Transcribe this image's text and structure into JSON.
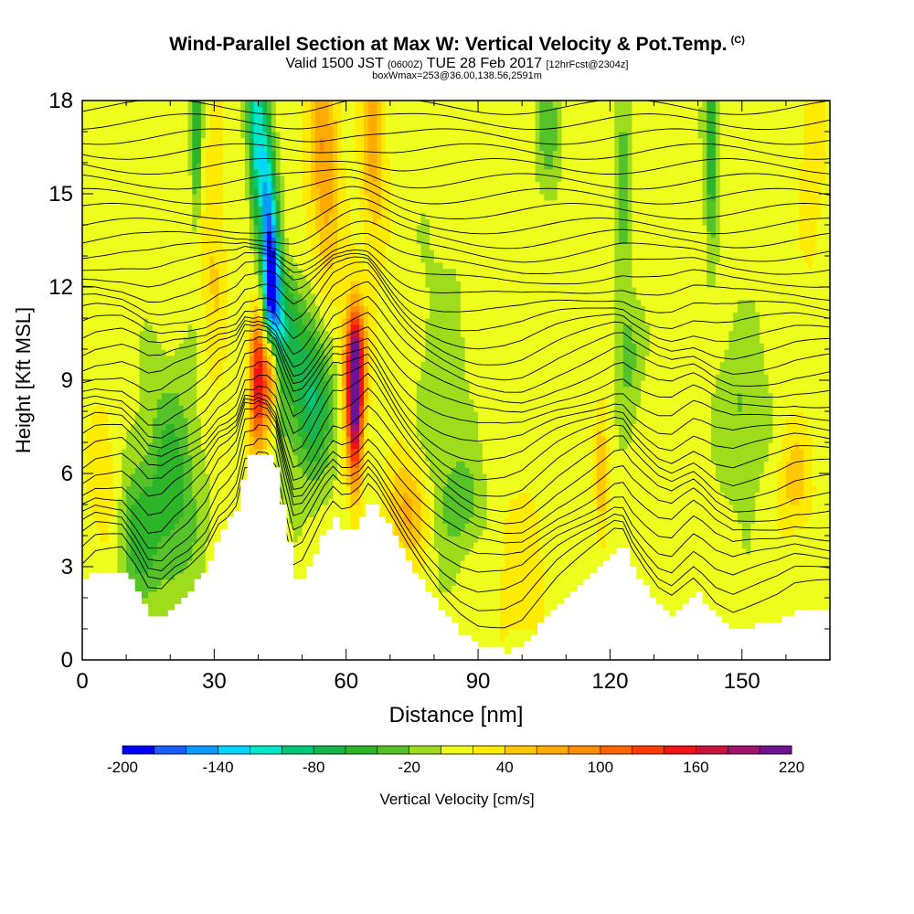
{
  "title": {
    "main": "Wind-Parallel Section at Max W: Vertical Velocity & Pot.Temp.",
    "copyright": "(C)",
    "valid_prefix": "Valid 1500 JST",
    "valid_utc": "(0600Z)",
    "valid_date": "TUE 28 Feb 2017",
    "forecast": "[12hrFcst@2304z]",
    "box": "boxWmax=253@36.00,138.56,2591m"
  },
  "colors": {
    "scale": [
      "#0000ff",
      "#1a5cff",
      "#0a9bff",
      "#00d6ff",
      "#00e6c8",
      "#00c878",
      "#16b44a",
      "#2db52a",
      "#56c22a",
      "#9fdc1c",
      "#eeff1e",
      "#ffeb00",
      "#ffc800",
      "#ffaa00",
      "#ff8c00",
      "#ff6400",
      "#ff3c00",
      "#f01414",
      "#c8143c",
      "#a0146e",
      "#6e1490"
    ],
    "background": "#eef520",
    "terrain": "#ffffff",
    "contour": "#000000"
  },
  "chart_data": {
    "type": "heatmap",
    "xlabel": "Distance [nm]",
    "ylabel": "Height [Kft MSL]",
    "xlim": [
      0,
      170
    ],
    "ylim": [
      0,
      18
    ],
    "xticks": [
      0,
      30,
      60,
      90,
      120,
      150
    ],
    "yticks": [
      0,
      3,
      6,
      9,
      12,
      15,
      18
    ],
    "colorbar": {
      "label": "Vertical Velocity [cm/s]",
      "ticks": [
        -200,
        -140,
        -80,
        -20,
        40,
        100,
        160,
        220
      ],
      "min": -200,
      "max": 220
    },
    "terrain": [
      {
        "x": 0,
        "h": 2.5
      },
      {
        "x": 3,
        "h": 2.9
      },
      {
        "x": 9,
        "h": 2.9
      },
      {
        "x": 12,
        "h": 2.2
      },
      {
        "x": 15,
        "h": 1.3
      },
      {
        "x": 18,
        "h": 1.3
      },
      {
        "x": 21,
        "h": 1.9
      },
      {
        "x": 24,
        "h": 2.3
      },
      {
        "x": 28,
        "h": 3.1
      },
      {
        "x": 31,
        "h": 4.2
      },
      {
        "x": 33,
        "h": 4.5
      },
      {
        "x": 35,
        "h": 5.0
      },
      {
        "x": 37,
        "h": 6.5
      },
      {
        "x": 39,
        "h": 6.5
      },
      {
        "x": 40,
        "h": 6.7
      },
      {
        "x": 42,
        "h": 6.6
      },
      {
        "x": 44,
        "h": 6.0
      },
      {
        "x": 46,
        "h": 4.2
      },
      {
        "x": 48,
        "h": 2.6
      },
      {
        "x": 50,
        "h": 2.7
      },
      {
        "x": 52,
        "h": 3.3
      },
      {
        "x": 55,
        "h": 4.2
      },
      {
        "x": 57,
        "h": 4.6
      },
      {
        "x": 59,
        "h": 4.2
      },
      {
        "x": 61,
        "h": 4.2
      },
      {
        "x": 63,
        "h": 4.5
      },
      {
        "x": 65,
        "h": 5.1
      },
      {
        "x": 67,
        "h": 4.8
      },
      {
        "x": 70,
        "h": 4.1
      },
      {
        "x": 74,
        "h": 3.1
      },
      {
        "x": 78,
        "h": 2.2
      },
      {
        "x": 82,
        "h": 1.4
      },
      {
        "x": 86,
        "h": 0.8
      },
      {
        "x": 90,
        "h": 0.4
      },
      {
        "x": 96,
        "h": 0.3
      },
      {
        "x": 100,
        "h": 0.5
      },
      {
        "x": 104,
        "h": 1.2
      },
      {
        "x": 108,
        "h": 1.9
      },
      {
        "x": 112,
        "h": 2.4
      },
      {
        "x": 116,
        "h": 2.9
      },
      {
        "x": 119,
        "h": 3.3
      },
      {
        "x": 121,
        "h": 3.6
      },
      {
        "x": 123,
        "h": 3.6
      },
      {
        "x": 125,
        "h": 2.9
      },
      {
        "x": 128,
        "h": 2.2
      },
      {
        "x": 131,
        "h": 1.6
      },
      {
        "x": 134,
        "h": 1.4
      },
      {
        "x": 137,
        "h": 1.9
      },
      {
        "x": 139,
        "h": 2.2
      },
      {
        "x": 141,
        "h": 1.9
      },
      {
        "x": 144,
        "h": 1.3
      },
      {
        "x": 148,
        "h": 0.9
      },
      {
        "x": 153,
        "h": 1.1
      },
      {
        "x": 158,
        "h": 1.3
      },
      {
        "x": 162,
        "h": 1.6
      },
      {
        "x": 170,
        "h": 1.6
      }
    ],
    "velocity_features": [
      {
        "x": 42,
        "y": 14.5,
        "w": -150,
        "sx": 1.6,
        "sy": 3.5,
        "slant": -4
      },
      {
        "x": 43,
        "y": 11.5,
        "w": -130,
        "sx": 1.3,
        "sy": 1.5,
        "slant": 0
      },
      {
        "x": 40,
        "y": 9.0,
        "w": 150,
        "sx": 1.4,
        "sy": 1.6,
        "slant": 0
      },
      {
        "x": 43,
        "y": 9.5,
        "w": 140,
        "sx": 1.2,
        "sy": 1.2,
        "slant": 0
      },
      {
        "x": 62,
        "y": 8.3,
        "w": 200,
        "sx": 1.3,
        "sy": 1.8,
        "slant": 0
      },
      {
        "x": 62,
        "y": 9.8,
        "w": 90,
        "sx": 2.0,
        "sy": 1.2,
        "slant": 0
      },
      {
        "x": 55,
        "y": 16.0,
        "w": 70,
        "sx": 2.5,
        "sy": 3.0,
        "slant": -2
      },
      {
        "x": 66,
        "y": 16.5,
        "w": 60,
        "sx": 2.0,
        "sy": 2.5,
        "slant": -2
      },
      {
        "x": 74,
        "y": 4.8,
        "w": 60,
        "sx": 3.5,
        "sy": 1.2,
        "slant": 0
      },
      {
        "x": 52,
        "y": 8.5,
        "w": -90,
        "sx": 3.5,
        "sy": 1.8,
        "slant": 0
      },
      {
        "x": 46,
        "y": 10.8,
        "w": -60,
        "sx": 2.5,
        "sy": 1.2,
        "slant": 0
      },
      {
        "x": 20,
        "y": 5.5,
        "w": -60,
        "sx": 4.5,
        "sy": 2.5,
        "slant": 0
      },
      {
        "x": 12,
        "y": 4.0,
        "w": -50,
        "sx": 3.0,
        "sy": 1.5,
        "slant": 0
      },
      {
        "x": 26,
        "y": 17.0,
        "w": -70,
        "sx": 0.8,
        "sy": 2.0,
        "slant": 0
      },
      {
        "x": 39,
        "y": 17.0,
        "w": -60,
        "sx": 0.9,
        "sy": 2.0,
        "slant": 0
      },
      {
        "x": 143,
        "y": 16.5,
        "w": -70,
        "sx": 1.0,
        "sy": 2.2,
        "slant": 0
      },
      {
        "x": 106,
        "y": 17.0,
        "w": -40,
        "sx": 1.8,
        "sy": 1.5,
        "slant": 0
      },
      {
        "x": 123,
        "y": 16.0,
        "w": -40,
        "sx": 1.2,
        "sy": 2.5,
        "slant": 0
      },
      {
        "x": 124,
        "y": 9.8,
        "w": -40,
        "sx": 2.0,
        "sy": 1.3,
        "slant": 0
      },
      {
        "x": 87,
        "y": 5.0,
        "w": -35,
        "sx": 3.5,
        "sy": 1.0,
        "slant": 0
      },
      {
        "x": 100,
        "y": 3.0,
        "w": 25,
        "sx": 5.0,
        "sy": 2.0,
        "slant": 0
      },
      {
        "x": 118,
        "y": 5.8,
        "w": 50,
        "sx": 1.0,
        "sy": 1.5,
        "slant": 0
      },
      {
        "x": 162,
        "y": 5.8,
        "w": 40,
        "sx": 3.0,
        "sy": 1.3,
        "slant": 0
      },
      {
        "x": 5,
        "y": 5.5,
        "w": 25,
        "sx": 3.0,
        "sy": 2.0,
        "slant": 0
      },
      {
        "x": 30,
        "y": 13.0,
        "w": 35,
        "sx": 2.0,
        "sy": 3.0,
        "slant": 0
      },
      {
        "x": 166,
        "y": 16.0,
        "w": 30,
        "sx": 2.0,
        "sy": 2.5,
        "slant": 0
      },
      {
        "x": 82,
        "y": 8.0,
        "w": -25,
        "sx": 4.0,
        "sy": 3.5,
        "slant": 0
      },
      {
        "x": 150,
        "y": 8.0,
        "w": -30,
        "sx": 4.0,
        "sy": 2.0,
        "slant": 0
      }
    ]
  }
}
